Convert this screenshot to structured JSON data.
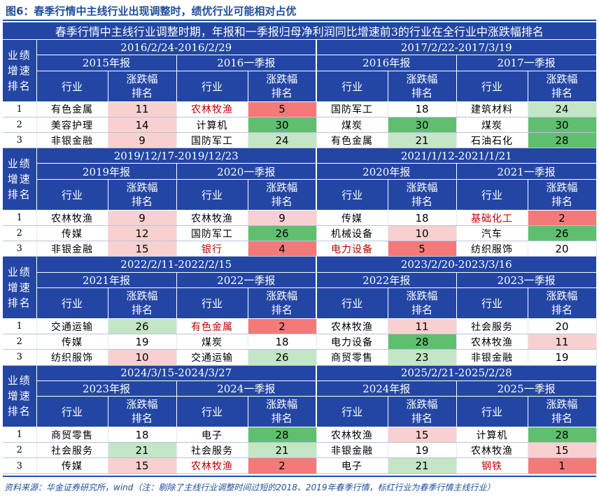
{
  "figure_title": "图6：春季行情中主线行业出现调整时，绩优行业可能相对占优",
  "table_title": "春季行情中主线行业调整时期，年报和一季报归母净利润同比增速前3的行业在全行业中涨跌幅排名",
  "labels": {
    "rank_header": [
      "业绩",
      "增速",
      "排名"
    ],
    "industry": "行业",
    "change_rank_top": "涨跌幅",
    "change_rank_bottom": "排名"
  },
  "colors": {
    "header_bg": "#2346a4",
    "highlight_text": "#c00000",
    "red_strong": "#f47a7a",
    "red_light": "#f9d0d0",
    "green_strong": "#5fbf6f",
    "green_light": "#c3e6c6",
    "neutral": "#ffffff"
  },
  "blocks": [
    {
      "periods": [
        {
          "date_range": "2016/2/24-2016/2/29",
          "report_a": "2015年报",
          "report_b": "2016一季报",
          "rows": [
            {
              "rank": "1",
              "a_ind": "有色金属",
              "a_val": "11",
              "a_color": "red_light",
              "a_hl": false,
              "b_ind": "农林牧渔",
              "b_val": "5",
              "b_color": "red_strong",
              "b_hl": true
            },
            {
              "rank": "2",
              "a_ind": "美容护理",
              "a_val": "14",
              "a_color": "red_light",
              "a_hl": false,
              "b_ind": "计算机",
              "b_val": "30",
              "b_color": "green_strong",
              "b_hl": false
            },
            {
              "rank": "3",
              "a_ind": "非银金融",
              "a_val": "9",
              "a_color": "red_light",
              "a_hl": false,
              "b_ind": "国防军工",
              "b_val": "24",
              "b_color": "green_light",
              "b_hl": false
            }
          ]
        },
        {
          "date_range": "2017/2/22-2017/3/19",
          "report_a": "2016年报",
          "report_b": "2017一季报",
          "rows": [
            {
              "rank": "1",
              "a_ind": "国防军工",
              "a_val": "18",
              "a_color": "neutral",
              "a_hl": false,
              "b_ind": "建筑材料",
              "b_val": "24",
              "b_color": "green_light",
              "b_hl": false
            },
            {
              "rank": "2",
              "a_ind": "煤炭",
              "a_val": "30",
              "a_color": "green_strong",
              "a_hl": false,
              "b_ind": "煤炭",
              "b_val": "30",
              "b_color": "green_strong",
              "b_hl": false
            },
            {
              "rank": "3",
              "a_ind": "有色金属",
              "a_val": "21",
              "a_color": "green_light",
              "a_hl": false,
              "b_ind": "石油石化",
              "b_val": "28",
              "b_color": "green_strong",
              "b_hl": false
            }
          ]
        }
      ]
    },
    {
      "periods": [
        {
          "date_range": "2019/12/17-2019/12/23",
          "report_a": "2019年报",
          "report_b": "2020一季报",
          "rows": [
            {
              "rank": "1",
              "a_ind": "农林牧渔",
              "a_val": "9",
              "a_color": "red_light",
              "a_hl": false,
              "b_ind": "农林牧渔",
              "b_val": "9",
              "b_color": "red_light",
              "b_hl": false
            },
            {
              "rank": "2",
              "a_ind": "传媒",
              "a_val": "12",
              "a_color": "red_light",
              "a_hl": false,
              "b_ind": "国防军工",
              "b_val": "26",
              "b_color": "green_strong",
              "b_hl": false
            },
            {
              "rank": "3",
              "a_ind": "非银金融",
              "a_val": "15",
              "a_color": "red_light",
              "a_hl": false,
              "b_ind": "银行",
              "b_val": "4",
              "b_color": "red_strong",
              "b_hl": true
            }
          ]
        },
        {
          "date_range": "2021/1/12-2021/1/21",
          "report_a": "2020年报",
          "report_b": "2021一季报",
          "rows": [
            {
              "rank": "1",
              "a_ind": "传媒",
              "a_val": "18",
              "a_color": "neutral",
              "a_hl": false,
              "b_ind": "基础化工",
              "b_val": "2",
              "b_color": "red_strong",
              "b_hl": true
            },
            {
              "rank": "2",
              "a_ind": "机械设备",
              "a_val": "10",
              "a_color": "red_light",
              "a_hl": false,
              "b_ind": "汽车",
              "b_val": "26",
              "b_color": "green_strong",
              "b_hl": false
            },
            {
              "rank": "3",
              "a_ind": "电力设备",
              "a_val": "5",
              "a_color": "red_strong",
              "a_hl": true,
              "b_ind": "纺织服饰",
              "b_val": "20",
              "b_color": "neutral",
              "b_hl": false
            }
          ]
        }
      ]
    },
    {
      "periods": [
        {
          "date_range": "2022/2/11-2022/2/15",
          "report_a": "2021年报",
          "report_b": "2022一季报",
          "rows": [
            {
              "rank": "1",
              "a_ind": "交通运输",
              "a_val": "26",
              "a_color": "green_light",
              "a_hl": false,
              "b_ind": "有色金属",
              "b_val": "2",
              "b_color": "red_strong",
              "b_hl": true
            },
            {
              "rank": "2",
              "a_ind": "传媒",
              "a_val": "19",
              "a_color": "neutral",
              "a_hl": false,
              "b_ind": "煤炭",
              "b_val": "18",
              "b_color": "neutral",
              "b_hl": false
            },
            {
              "rank": "3",
              "a_ind": "纺织服饰",
              "a_val": "10",
              "a_color": "red_light",
              "a_hl": false,
              "b_ind": "交通运输",
              "b_val": "26",
              "b_color": "green_light",
              "b_hl": false
            }
          ]
        },
        {
          "date_range": "2023/2/20-2023/3/16",
          "report_a": "2022年报",
          "report_b": "2023一季报",
          "rows": [
            {
              "rank": "1",
              "a_ind": "农林牧渔",
              "a_val": "11",
              "a_color": "red_light",
              "a_hl": false,
              "b_ind": "社会服务",
              "b_val": "20",
              "b_color": "neutral",
              "b_hl": false
            },
            {
              "rank": "2",
              "a_ind": "电力设备",
              "a_val": "28",
              "a_color": "green_strong",
              "a_hl": false,
              "b_ind": "农林牧渔",
              "b_val": "11",
              "b_color": "red_light",
              "b_hl": false
            },
            {
              "rank": "3",
              "a_ind": "商贸零售",
              "a_val": "23",
              "a_color": "green_light",
              "a_hl": false,
              "b_ind": "非银金融",
              "b_val": "19",
              "b_color": "neutral",
              "b_hl": false
            }
          ]
        }
      ]
    },
    {
      "periods": [
        {
          "date_range": "2024/3/15-2024/3/27",
          "report_a": "2023年报",
          "report_b": "2024一季报",
          "rows": [
            {
              "rank": "1",
              "a_ind": "商贸零售",
              "a_val": "18",
              "a_color": "neutral",
              "a_hl": false,
              "b_ind": "电子",
              "b_val": "28",
              "b_color": "green_strong",
              "b_hl": false
            },
            {
              "rank": "2",
              "a_ind": "社会服务",
              "a_val": "21",
              "a_color": "green_light",
              "a_hl": false,
              "b_ind": "社会服务",
              "b_val": "21",
              "b_color": "green_light",
              "b_hl": false
            },
            {
              "rank": "3",
              "a_ind": "传媒",
              "a_val": "15",
              "a_color": "red_light",
              "a_hl": false,
              "b_ind": "农林牧渔",
              "b_val": "2",
              "b_color": "red_strong",
              "b_hl": true
            }
          ]
        },
        {
          "date_range": "2025/2/21-2025/2/28",
          "report_a": "2024年报",
          "report_b": "2025一季报",
          "rows": [
            {
              "rank": "1",
              "a_ind": "农林牧渔",
              "a_val": "15",
              "a_color": "red_light",
              "a_hl": false,
              "b_ind": "计算机",
              "b_val": "28",
              "b_color": "green_strong",
              "b_hl": false
            },
            {
              "rank": "2",
              "a_ind": "非银金融",
              "a_val": "19",
              "a_color": "neutral",
              "a_hl": false,
              "b_ind": "农林牧渔",
              "b_val": "15",
              "b_color": "red_light",
              "b_hl": false
            },
            {
              "rank": "3",
              "a_ind": "电子",
              "a_val": "21",
              "a_color": "green_light",
              "a_hl": false,
              "b_ind": "钢铁",
              "b_val": "1",
              "b_color": "red_strong",
              "b_hl": true
            }
          ]
        }
      ]
    }
  ],
  "source_note": "资料来源：华金证券研究所，wind（注：剔除了主线行业调整时间过短的2018、2019年春季行情，标红行业为春季行情主线行业）"
}
